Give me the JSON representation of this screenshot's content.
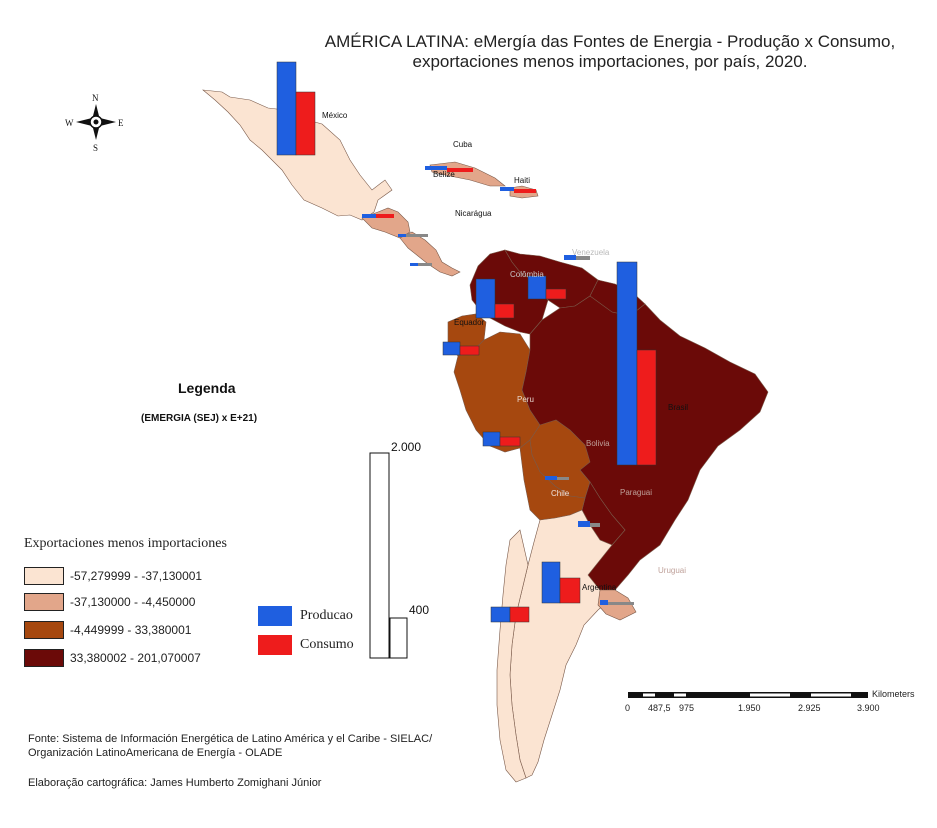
{
  "title": {
    "line1": "AMÉRICA LATINA: eMergía das Fontes de Energia - Produção x Consumo,",
    "line2": "exportaciones menos importaciones, por país, 2020."
  },
  "legend": {
    "title": "Legenda",
    "unit": "(EMERGIA (SEJ) x E+21)",
    "choropleth_title": "Exportaciones menos importaciones",
    "classes": [
      {
        "label": "-57,279999 - -37,130001",
        "color": "#fbe4d2"
      },
      {
        "label": "-37,130000 - -4,450000",
        "color": "#e2a68a"
      },
      {
        "label": "-4,449999 - 33,380001",
        "color": "#a6480f"
      },
      {
        "label": "33,380002 - 201,070007",
        "color": "#6b0a08"
      }
    ],
    "bars": [
      {
        "label": "Producao",
        "color": "#1f5fe0"
      },
      {
        "label": "Consumo",
        "color": "#ee1c1c"
      }
    ],
    "bar_sizes": {
      "large": "2.000",
      "small": "400"
    }
  },
  "compass": {
    "n": "N",
    "s": "S",
    "e": "E",
    "w": "W"
  },
  "countries": {
    "mexico": "México",
    "cuba": "Cuba",
    "belize": "Belize",
    "haiti": "Haiti",
    "nicaragua": "Nicarágua",
    "venezuela": "Venezuela",
    "colombia": "Colômbia",
    "ecuador": "Equador",
    "peru": "Peru",
    "brasil": "Brasil",
    "bolivia": "Bolivia",
    "chile": "Chile",
    "paraguai": "Paraguai",
    "uruguai": "Uruguai",
    "argentina": "Argentina"
  },
  "scale_bar": {
    "unit": "Kilometers",
    "ticks": [
      "0",
      "487,5",
      "975",
      "1.950",
      "2.925",
      "3.900"
    ]
  },
  "source": {
    "line1": "Fonte: Sistema de Información Energética de Latino América y el Caribe - SIELAC/",
    "line2": "Organización LatinoAmericana de Energía - OLADE",
    "credit": "Elaboração cartográfica: James Humberto Zomighani Júnior"
  }
}
